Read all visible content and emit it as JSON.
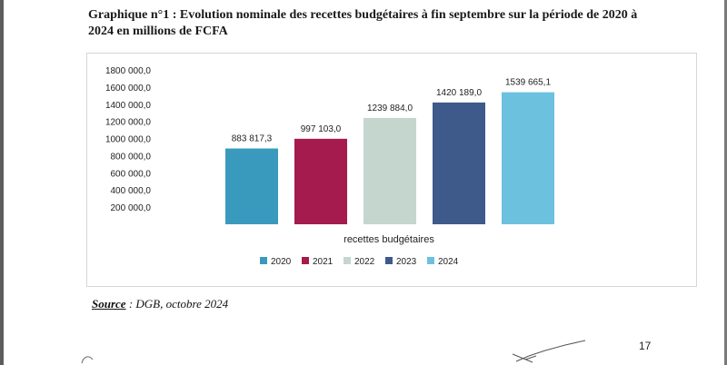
{
  "caption": {
    "line1": "Graphique n°1 : Evolution nominale des recettes budgétaires à fin septembre sur la période de 2020 à",
    "line2": "2024 en millions de FCFA"
  },
  "chart_data": {
    "type": "bar",
    "title": "",
    "xlabel": "recettes budgétaires",
    "ylabel": "",
    "ylim": [
      0,
      1800000
    ],
    "yticks": [
      {
        "value": 200000,
        "label": "200 000,0"
      },
      {
        "value": 400000,
        "label": "400 000,0"
      },
      {
        "value": 600000,
        "label": "600 000,0"
      },
      {
        "value": 800000,
        "label": "800 000,0"
      },
      {
        "value": 1000000,
        "label": "1000 000,0"
      },
      {
        "value": 1200000,
        "label": "1200 000,0"
      },
      {
        "value": 1400000,
        "label": "1400 000,0"
      },
      {
        "value": 1600000,
        "label": "1600 000,0"
      },
      {
        "value": 1800000,
        "label": "1800 000,0"
      }
    ],
    "categories": [
      "recettes budgétaires"
    ],
    "series": [
      {
        "name": "2020",
        "values": [
          883817.3
        ],
        "label": "883 817,3",
        "color": "#3a9abd"
      },
      {
        "name": "2021",
        "values": [
          997103.0
        ],
        "label": "997 103,0",
        "color": "#a51b4e"
      },
      {
        "name": "2022",
        "values": [
          1239884.0
        ],
        "label": "1239 884,0",
        "color": "#c5d6cf"
      },
      {
        "name": "2023",
        "values": [
          1420189.0
        ],
        "label": "1420 189,0",
        "color": "#3d5a8a"
      },
      {
        "name": "2024",
        "values": [
          1539665.1
        ],
        "label": "1539 665,1",
        "color": "#6cc1df"
      }
    ],
    "legend_position": "bottom"
  },
  "source": {
    "label": "Source",
    "text": " : DGB, octobre 2024"
  },
  "page_number": "17"
}
